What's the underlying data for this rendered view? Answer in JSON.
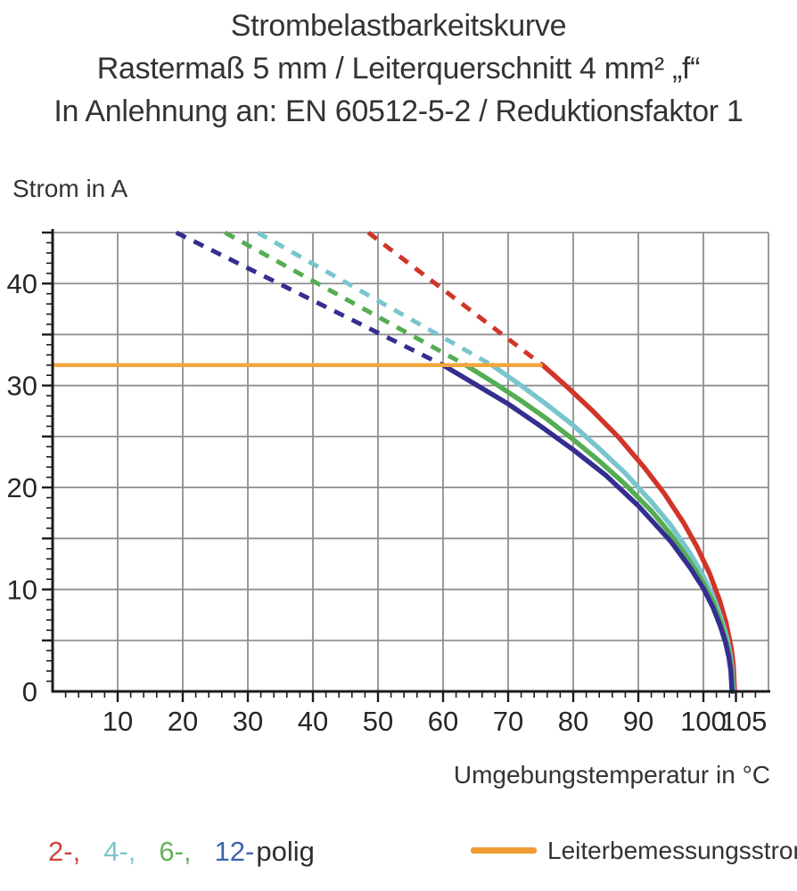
{
  "header": {
    "line1": "Strombelastbarkeitskurve",
    "line2": "Rastermaß 5 mm / Leiterquerschnitt 4 mm² „f“",
    "line3": "In Anlehnung an: EN 60512-5-2 / Reduktionsfaktor 1"
  },
  "chart_data": {
    "type": "line",
    "title": "Strombelastbarkeitskurve",
    "subtitle": "Rastermaß 5 mm / Leiterquerschnitt 4 mm² „f“ / In Anlehnung an: EN 60512-5-2 / Reduktionsfaktor 1",
    "xlabel": "Umgebungstemperatur in °C",
    "ylabel": "Strom in A",
    "xlim": [
      0,
      110
    ],
    "ylim": [
      0,
      45
    ],
    "grid": true,
    "grid_color": "#8f8f8f",
    "axis_color": "#1c1c1c",
    "x_grid_step": 10,
    "y_grid_step": 5,
    "x_minor_tick_step": 2,
    "y_minor_tick_step": 1,
    "x_tick_values": [
      10,
      20,
      30,
      40,
      50,
      60,
      70,
      80,
      90,
      100,
      105
    ],
    "x_tick_labels": [
      "10",
      "20",
      "30",
      "40",
      "50",
      "60",
      "70",
      "80",
      "90",
      "100",
      "105"
    ],
    "y_tick_values": [
      0,
      10,
      20,
      30,
      40
    ],
    "y_tick_labels": [
      "0",
      "10",
      "20",
      "30",
      "40"
    ],
    "legend_position": "bottom",
    "rated_current_line": {
      "name": "Leiterbemessungsstrom",
      "current_a": 32,
      "x_from": 0,
      "x_to": 75.3,
      "color": "#f1a73e"
    },
    "series": [
      {
        "name": "2-polig",
        "color": "#d13528",
        "dashed_extrapolation": {
          "x": [
            48.5,
            75.3
          ],
          "y": [
            45,
            32
          ]
        },
        "solid_curve": {
          "x": [
            75.3,
            79,
            83,
            87,
            91,
            94,
            97,
            99,
            101,
            102.5,
            103.5,
            104.3,
            104.6,
            104.8
          ],
          "y": [
            32,
            29.9,
            27.5,
            24.9,
            21.9,
            19.4,
            16.5,
            14.2,
            11.5,
            8.9,
            6.7,
            4.2,
            2.6,
            0
          ]
        }
      },
      {
        "name": "4-polig",
        "color": "#79c5ce",
        "dashed_extrapolation": {
          "x": [
            31.5,
            67.5
          ],
          "y": [
            45,
            32
          ]
        },
        "solid_curve": {
          "x": [
            67.5,
            72,
            76,
            80,
            84,
            88,
            92,
            95,
            98,
            100,
            101.5,
            102.6,
            103.6,
            104.1,
            104.4,
            104.6
          ],
          "y": [
            32,
            30,
            28.1,
            26.1,
            23.8,
            21.4,
            18.6,
            16.3,
            13.5,
            11.3,
            9.3,
            7.4,
            5.3,
            3.7,
            2.3,
            0
          ]
        }
      },
      {
        "name": "6-polig",
        "color": "#54ad52",
        "dashed_extrapolation": {
          "x": [
            26.5,
            63.5
          ],
          "y": [
            45,
            32
          ]
        },
        "solid_curve": {
          "x": [
            63.5,
            68,
            72,
            76,
            80,
            84,
            88,
            92,
            95,
            98,
            100,
            101.5,
            102.6,
            103.5,
            104,
            104.3,
            104.5
          ],
          "y": [
            32,
            30.2,
            28.5,
            26.7,
            24.7,
            22.6,
            20.3,
            17.7,
            15.4,
            12.7,
            10.6,
            8.7,
            6.9,
            5,
            3.5,
            2.2,
            0
          ]
        }
      },
      {
        "name": "12-polig",
        "color": "#342e90",
        "dashed_extrapolation": {
          "x": [
            19,
            60
          ],
          "y": [
            45,
            32
          ]
        },
        "solid_curve": {
          "x": [
            60,
            65,
            70,
            75,
            80,
            85,
            90,
            95,
            98,
            100,
            101.5,
            102.6,
            103.4,
            103.9,
            104.2,
            104.4
          ],
          "y": [
            32,
            30.1,
            28.2,
            26,
            23.7,
            21.2,
            18.2,
            14.7,
            12.1,
            10.1,
            8.2,
            6.4,
            4.8,
            3.4,
            2.1,
            0
          ]
        }
      }
    ]
  },
  "legend": {
    "poles": [
      {
        "label": "2-,",
        "color": "#cc4437"
      },
      {
        "label": "4-,",
        "color": "#7cc5cd"
      },
      {
        "label": "6-,",
        "color": "#63b25a"
      },
      {
        "label": "12-",
        "color": "#3f63ae"
      },
      {
        "label": "polig",
        "color": "#2e2e2e"
      }
    ],
    "rated": {
      "label": "Leiterbemessungsstrom",
      "swatch_color": "#f09d35"
    }
  }
}
